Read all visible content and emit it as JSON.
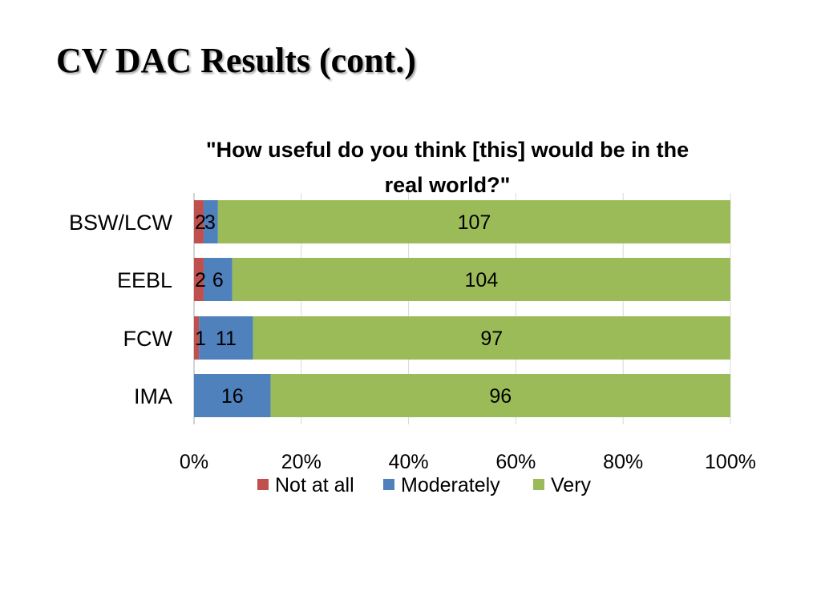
{
  "slide": {
    "title": "CV DAC Results (cont.)"
  },
  "chart_data": {
    "type": "bar",
    "orientation": "horizontal",
    "stacked": true,
    "normalized": "percent",
    "title_lines": [
      "\"How useful do you think [this] would be in the",
      "real world?\""
    ],
    "categories": [
      "BSW/LCW",
      "EEBL",
      "FCW",
      "IMA"
    ],
    "series": [
      {
        "name": "Not at all",
        "color": "#c0504d",
        "values": [
          2,
          2,
          1,
          0
        ]
      },
      {
        "name": "Moderately",
        "color": "#4f81bd",
        "values": [
          3,
          6,
          11,
          16
        ]
      },
      {
        "name": "Very",
        "color": "#9bbb59",
        "values": [
          107,
          104,
          97,
          96
        ]
      }
    ],
    "data_labels": [
      [
        "2",
        "3",
        "107"
      ],
      [
        "2",
        "6",
        "104"
      ],
      [
        "1",
        "11",
        "97"
      ],
      [
        "",
        "16",
        "96"
      ]
    ],
    "xlim": [
      0,
      100
    ],
    "x_ticks": [
      "0%",
      "20%",
      "40%",
      "60%",
      "80%",
      "100%"
    ],
    "grid": true,
    "legend": "bottom"
  }
}
